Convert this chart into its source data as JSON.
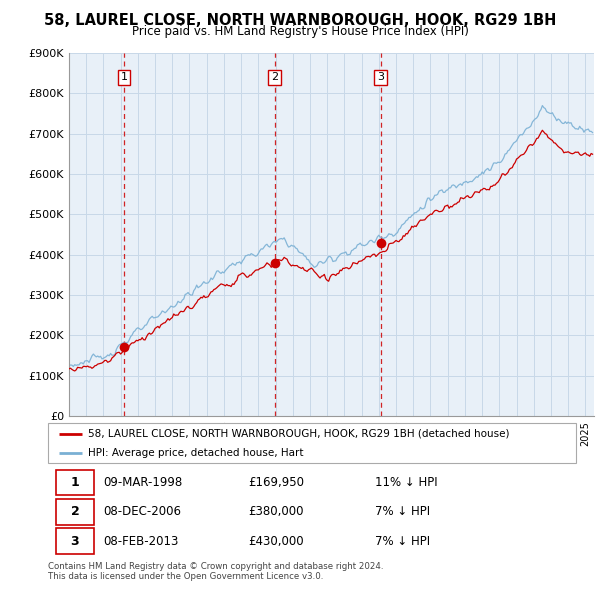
{
  "title": "58, LAUREL CLOSE, NORTH WARNBOROUGH, HOOK, RG29 1BH",
  "subtitle": "Price paid vs. HM Land Registry's House Price Index (HPI)",
  "red_label": "58, LAUREL CLOSE, NORTH WARNBOROUGH, HOOK, RG29 1BH (detached house)",
  "blue_label": "HPI: Average price, detached house, Hart",
  "transactions": [
    {
      "num": 1,
      "date": "09-MAR-1998",
      "price": 169950,
      "hpi_diff": "11% ↓ HPI",
      "year": 1998.19
    },
    {
      "num": 2,
      "date": "08-DEC-2006",
      "price": 380000,
      "hpi_diff": "7% ↓ HPI",
      "year": 2006.94
    },
    {
      "num": 3,
      "date": "08-FEB-2013",
      "price": 430000,
      "hpi_diff": "7% ↓ HPI",
      "year": 2013.11
    }
  ],
  "footer": "Contains HM Land Registry data © Crown copyright and database right 2024.\nThis data is licensed under the Open Government Licence v3.0.",
  "ylim": [
    0,
    900000
  ],
  "yticks": [
    0,
    100000,
    200000,
    300000,
    400000,
    500000,
    600000,
    700000,
    800000,
    900000
  ],
  "ytick_labels": [
    "£0",
    "£100K",
    "£200K",
    "£300K",
    "£400K",
    "£500K",
    "£600K",
    "£700K",
    "£800K",
    "£900K"
  ],
  "red_color": "#cc0000",
  "blue_color": "#7ab0d4",
  "vline_color": "#cc0000",
  "grid_color": "#c8d8e8",
  "chart_bg": "#e8f0f8",
  "bg_color": "#ffffff",
  "xlim_start": 1995,
  "xlim_end": 2025.5
}
